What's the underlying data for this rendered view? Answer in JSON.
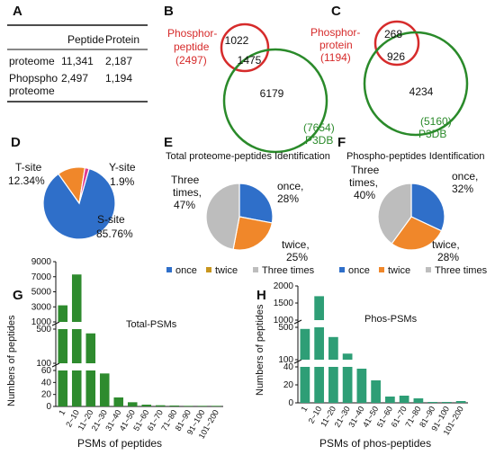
{
  "panel_labels": {
    "A": "A",
    "B": "B",
    "C": "C",
    "D": "D",
    "E": "E",
    "F": "F",
    "G": "G",
    "H": "H"
  },
  "table_a": {
    "headers": [
      "",
      "Peptide",
      "Protein"
    ],
    "rows": [
      {
        "label_lines": [
          "proteome"
        ],
        "values": [
          "11,341",
          "2,187"
        ]
      },
      {
        "label_lines": [
          "Phopspho",
          "proteome"
        ],
        "values": [
          "2,497",
          "1,194"
        ]
      }
    ]
  },
  "venn_b": {
    "left_label_lines": [
      "Phosphor-",
      "peptide",
      "(2497)"
    ],
    "left_only": "1022",
    "overlap": "1475",
    "right_only": "6179",
    "right_label_lines": [
      "(7654)",
      "P3DB"
    ],
    "colors": {
      "left": "#d62b2b",
      "right": "#2a8a2a"
    }
  },
  "venn_c": {
    "left_label_lines": [
      "Phosphor-",
      "protein",
      "(1194)"
    ],
    "left_only": "268",
    "overlap": "926",
    "right_only": "4234",
    "right_label_lines": [
      "(5160)",
      "P3DB"
    ],
    "colors": {
      "left": "#d62b2b",
      "right": "#2a8a2a"
    }
  },
  "chart_data": [
    {
      "id": "D",
      "type": "pie",
      "title": "",
      "slices": [
        {
          "name": "S-site",
          "value": 85.76,
          "color": "#2f6fc9"
        },
        {
          "name": "T-site",
          "value": 12.34,
          "color": "#f0872a"
        },
        {
          "name": "Y-site",
          "value": 1.9,
          "color": "#e23b8f"
        }
      ],
      "labels": [
        {
          "lines": [
            "T-site",
            "12.34%"
          ]
        },
        {
          "lines": [
            "Y-site",
            "1.9%"
          ]
        },
        {
          "lines": [
            "S-site",
            "85.76%"
          ]
        }
      ]
    },
    {
      "id": "E",
      "type": "pie",
      "title": "Total proteome-peptides Identification",
      "slices": [
        {
          "name": "once",
          "value": 28,
          "color": "#2f6fc9"
        },
        {
          "name": "twice",
          "value": 25,
          "color": "#f0872a"
        },
        {
          "name": "Three  times",
          "value": 47,
          "color": "#bdbdbd"
        }
      ],
      "labels": [
        {
          "lines": [
            "once,",
            "28%"
          ]
        },
        {
          "lines": [
            "twice,",
            "25%"
          ]
        },
        {
          "lines": [
            "Three",
            "times,",
            "47%"
          ]
        }
      ],
      "legend": [
        "once",
        "twice",
        "Three  times"
      ],
      "legend_colors": [
        "#2f6fc9",
        "#c8961e",
        "#bdbdbd"
      ]
    },
    {
      "id": "F",
      "type": "pie",
      "title": "Phospho-peptides Identification",
      "slices": [
        {
          "name": "once",
          "value": 32,
          "color": "#2f6fc9"
        },
        {
          "name": "twice",
          "value": 28,
          "color": "#f0872a"
        },
        {
          "name": "Three  times",
          "value": 40,
          "color": "#bdbdbd"
        }
      ],
      "labels": [
        {
          "lines": [
            "once,",
            "32%"
          ]
        },
        {
          "lines": [
            "twice,",
            "28%"
          ]
        },
        {
          "lines": [
            "Three",
            "times,",
            "40%"
          ]
        }
      ],
      "legend": [
        "once",
        "twice",
        "Three  times"
      ],
      "legend_colors": [
        "#2f6fc9",
        "#f0872a",
        "#bdbdbd"
      ]
    },
    {
      "id": "G",
      "type": "bar",
      "title": "Total-PSMs",
      "xlabel": "PSMs of peptides",
      "ylabel": "Numbers of peptides",
      "categories": [
        "1",
        "2~10",
        "11~20",
        "21~30",
        "31~40",
        "41~50",
        "51~60",
        "61~70",
        "71~80",
        "81~90",
        "91~100",
        "101~200"
      ],
      "values": [
        3200,
        7300,
        450,
        55,
        15,
        7,
        3,
        2,
        1.5,
        1,
        1,
        1
      ],
      "broken_axis": true,
      "segments": [
        {
          "range": [
            0,
            60
          ],
          "ticks": [
            "0",
            "20",
            "40",
            "60"
          ]
        },
        {
          "range": [
            100,
            500
          ],
          "ticks": [
            "100",
            "500"
          ]
        },
        {
          "range": [
            1000,
            9000
          ],
          "ticks": [
            "1000",
            "3000",
            "5000",
            "7000",
            "9000"
          ]
        }
      ],
      "color": "#2e8b2e"
    },
    {
      "id": "H",
      "type": "bar",
      "title": "Phos-PSMs",
      "xlabel": "PSMs of phos-peptides",
      "ylabel": "Numbers of peptides",
      "categories": [
        "1",
        "2~10",
        "11~20",
        "21~30",
        "31~40",
        "41~50",
        "51~60",
        "61~70",
        "71~80",
        "81~90",
        "91~100",
        "101~200"
      ],
      "values": [
        480,
        1700,
        380,
        175,
        38,
        25,
        7,
        8,
        5,
        1,
        1,
        2
      ],
      "broken_axis": true,
      "segments": [
        {
          "range": [
            0,
            40
          ],
          "ticks": [
            "0",
            "20",
            "40"
          ]
        },
        {
          "range": [
            100,
            500
          ],
          "ticks": [
            "100",
            "500"
          ]
        },
        {
          "range": [
            1000,
            2000
          ],
          "ticks": [
            "1000",
            "1500",
            "2000"
          ]
        }
      ],
      "color": "#2e9e76"
    }
  ]
}
